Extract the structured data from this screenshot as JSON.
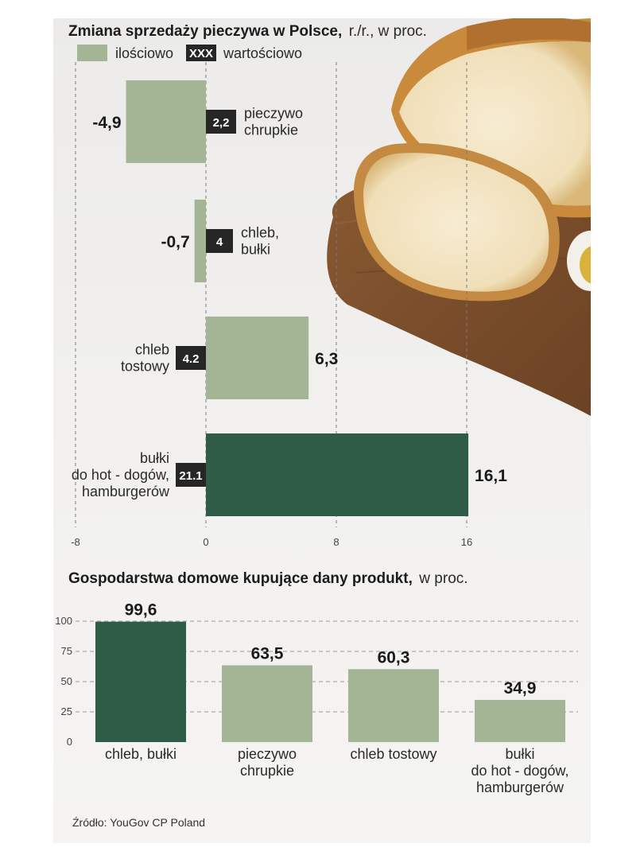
{
  "colors": {
    "light_green": "#a3b594",
    "dark_green": "#2e5c46",
    "box_black": "#262626"
  },
  "chart_data": [
    {
      "type": "bar",
      "orientation": "horizontal",
      "title": "Zmiana sprzedaży pieczywa w Polsce,",
      "subtitle": "r./r., w proc.",
      "legend": [
        {
          "label": "ilościowo",
          "marker": ""
        },
        {
          "label": "wartościowo",
          "marker": "XXX"
        }
      ],
      "xlim": [
        -8,
        16
      ],
      "xticks": [
        "-8",
        "0",
        "8",
        "16"
      ],
      "categories": [
        {
          "lines": [
            "pieczywo",
            "chrupkie"
          ],
          "quantity": -4.9,
          "quantity_label": "-4,9",
          "value": 2.2,
          "value_label": "2,2",
          "highlight": false
        },
        {
          "lines": [
            "chleb,",
            "bułki"
          ],
          "quantity": -0.7,
          "quantity_label": "-0,7",
          "value": 4,
          "value_label": "4",
          "highlight": false
        },
        {
          "lines": [
            "chleb",
            "tostowy"
          ],
          "quantity": 6.3,
          "quantity_label": "6,3",
          "value": 4.2,
          "value_label": "4.2",
          "highlight": false
        },
        {
          "lines": [
            "bułki",
            "do hot - dogów,",
            "hamburgerów"
          ],
          "quantity": 16.1,
          "quantity_label": "16,1",
          "value": 21.1,
          "value_label": "21.1",
          "highlight": true
        }
      ]
    },
    {
      "type": "bar",
      "title": "Gospodarstwa domowe kupujące dany produkt,",
      "subtitle": "w proc.",
      "ylim": [
        0,
        100
      ],
      "yticks": [
        "0",
        "25",
        "50",
        "75",
        "100"
      ],
      "categories": [
        {
          "lines": [
            "chleb, bułki"
          ],
          "value": 99.6,
          "label": "99,6",
          "highlight": true
        },
        {
          "lines": [
            "pieczywo",
            "chrupkie"
          ],
          "value": 63.5,
          "label": "63,5",
          "highlight": false
        },
        {
          "lines": [
            "chleb tostowy"
          ],
          "value": 60.3,
          "label": "60,3",
          "highlight": false
        },
        {
          "lines": [
            "bułki",
            "do hot - dogów,",
            "hamburgerów"
          ],
          "value": 34.9,
          "label": "34,9",
          "highlight": false
        }
      ]
    }
  ],
  "source": "Źródło: YouGov CP Poland",
  "illustration": "bread-loaf-on-cutting-board"
}
